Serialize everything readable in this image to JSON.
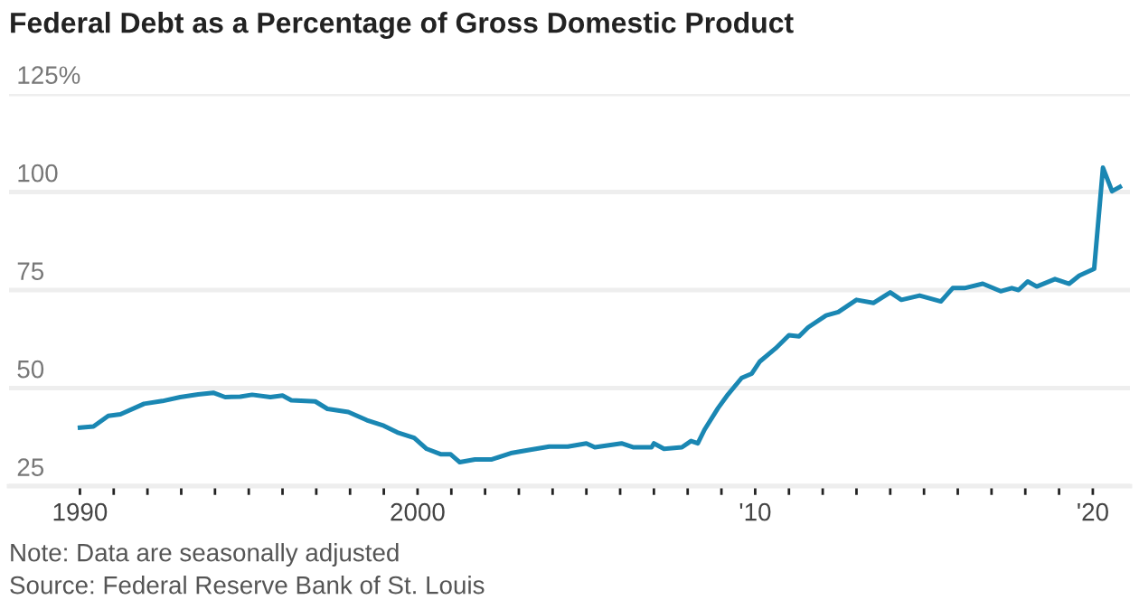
{
  "chart_data": {
    "type": "line",
    "title": "Federal Debt as a Percentage of Gross Domestic Product",
    "annotations": [
      "Note: Data are seasonally adjusted",
      "Source: Federal Reserve Bank of St. Louis"
    ],
    "series": [
      {
        "color": "#1a87b3",
        "x": [
          1990.0,
          1990.4,
          1990.84,
          1991.2,
          1991.9,
          1992.44,
          1992.97,
          1993.5,
          1993.95,
          1994.3,
          1994.75,
          1995.1,
          1995.64,
          1996.0,
          1996.26,
          1996.97,
          1997.33,
          1997.95,
          1998.5,
          1999.0,
          1999.4,
          1999.9,
          2000.27,
          2000.7,
          2000.98,
          2001.25,
          2001.7,
          2002.2,
          2002.76,
          2003.3,
          2003.9,
          2004.45,
          2005.0,
          2005.25,
          2006.04,
          2006.4,
          2006.93,
          2007.0,
          2007.3,
          2007.83,
          2008.1,
          2008.3,
          2008.5,
          2008.9,
          2009.16,
          2009.6,
          2009.9,
          2010.14,
          2010.6,
          2011.0,
          2011.3,
          2011.57,
          2012.1,
          2012.46,
          2013.0,
          2013.5,
          2014.0,
          2014.33,
          2014.87,
          2015.5,
          2015.85,
          2016.2,
          2016.74,
          2017.27,
          2017.6,
          2017.8,
          2018.07,
          2018.34,
          2018.88,
          2019.3,
          2019.6,
          2020.04,
          2020.3,
          2020.57,
          2020.8
        ],
        "values": [
          39.9,
          40.2,
          42.9,
          43.3,
          46.0,
          46.7,
          47.7,
          48.4,
          48.8,
          47.7,
          47.8,
          48.3,
          47.7,
          48.1,
          46.9,
          46.6,
          44.7,
          43.9,
          41.8,
          40.4,
          38.7,
          37.3,
          34.5,
          33.1,
          33.1,
          31.1,
          31.8,
          31.8,
          33.4,
          34.2,
          35.1,
          35.1,
          35.9,
          34.9,
          35.9,
          34.9,
          34.9,
          35.9,
          34.5,
          34.9,
          36.5,
          35.9,
          39.4,
          44.9,
          48.0,
          52.6,
          53.7,
          56.8,
          60.1,
          63.5,
          63.2,
          65.5,
          68.5,
          69.4,
          72.5,
          71.7,
          74.4,
          72.5,
          73.6,
          72.1,
          75.5,
          75.5,
          76.6,
          74.7,
          75.5,
          75.0,
          77.2,
          75.9,
          77.8,
          76.6,
          78.7,
          80.4,
          106.2,
          100.2,
          101.3
        ]
      }
    ],
    "xlim": [
      1987.9,
      2021.1
    ],
    "xticks": [
      {
        "value": 1990,
        "label": "1990"
      },
      {
        "value": 1991,
        "label": null
      },
      {
        "value": 1992,
        "label": null
      },
      {
        "value": 1993,
        "label": null
      },
      {
        "value": 1994,
        "label": null
      },
      {
        "value": 1995,
        "label": null
      },
      {
        "value": 1996,
        "label": null
      },
      {
        "value": 1997,
        "label": null
      },
      {
        "value": 1998,
        "label": null
      },
      {
        "value": 1999,
        "label": null
      },
      {
        "value": 2000,
        "label": "2000"
      },
      {
        "value": 2001,
        "label": null
      },
      {
        "value": 2002,
        "label": null
      },
      {
        "value": 2003,
        "label": null
      },
      {
        "value": 2004,
        "label": null
      },
      {
        "value": 2005,
        "label": null
      },
      {
        "value": 2006,
        "label": null
      },
      {
        "value": 2007,
        "label": null
      },
      {
        "value": 2008,
        "label": null
      },
      {
        "value": 2009,
        "label": null
      },
      {
        "value": 2010,
        "label": "'10"
      },
      {
        "value": 2011,
        "label": null
      },
      {
        "value": 2012,
        "label": null
      },
      {
        "value": 2013,
        "label": null
      },
      {
        "value": 2014,
        "label": null
      },
      {
        "value": 2015,
        "label": null
      },
      {
        "value": 2016,
        "label": null
      },
      {
        "value": 2017,
        "label": null
      },
      {
        "value": 2018,
        "label": null
      },
      {
        "value": 2019,
        "label": null
      },
      {
        "value": 2020,
        "label": "'20"
      }
    ],
    "ylim": [
      25,
      125
    ],
    "yticks": [
      25,
      50,
      75,
      100,
      {
        "value": 125,
        "label": "125%"
      }
    ],
    "grid": "y",
    "legend": false,
    "marker": "none",
    "line_style": "solid"
  }
}
